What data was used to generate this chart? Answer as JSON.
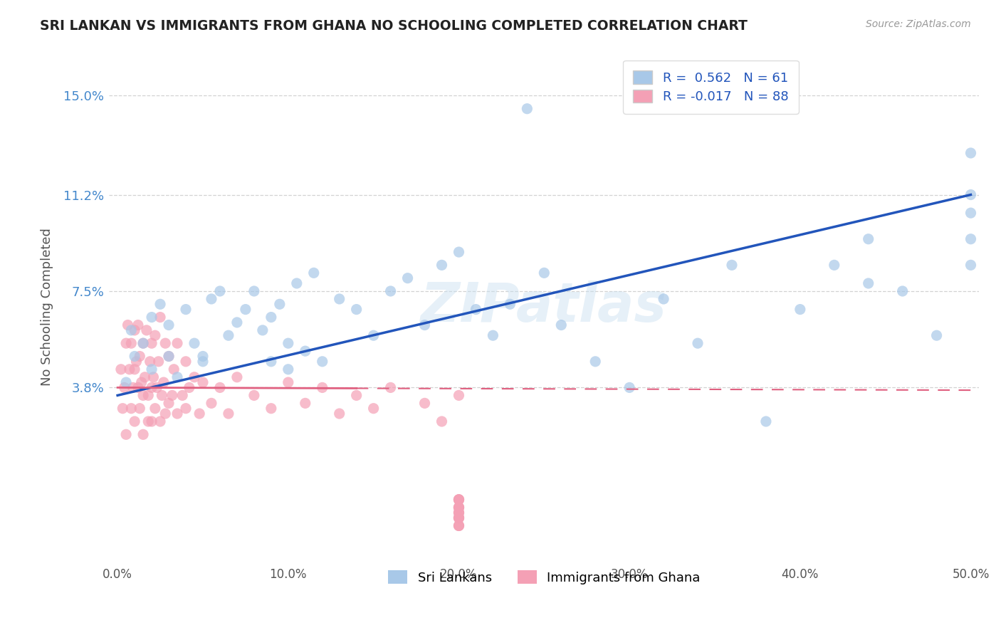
{
  "title": "SRI LANKAN VS IMMIGRANTS FROM GHANA NO SCHOOLING COMPLETED CORRELATION CHART",
  "source": "Source: ZipAtlas.com",
  "xlabel": "",
  "ylabel": "No Schooling Completed",
  "xlim": [
    -0.005,
    0.505
  ],
  "ylim": [
    -0.03,
    0.168
  ],
  "yticks": [
    0.038,
    0.075,
    0.112,
    0.15
  ],
  "ytick_labels": [
    "3.8%",
    "7.5%",
    "11.2%",
    "15.0%"
  ],
  "xticks": [
    0.0,
    0.1,
    0.2,
    0.3,
    0.4,
    0.5
  ],
  "xtick_labels": [
    "0.0%",
    "10.0%",
    "20.0%",
    "30.0%",
    "40.0%",
    "50.0%"
  ],
  "sri_lankan_R": 0.562,
  "sri_lankan_N": 61,
  "ghana_R": -0.017,
  "ghana_N": 88,
  "sri_lankan_color": "#a8c8e8",
  "ghana_color": "#f4a0b5",
  "sri_lankan_line_color": "#2255bb",
  "ghana_line_color": "#e06080",
  "background_color": "#ffffff",
  "watermark": "ZIPatlas",
  "sri_lankan_x": [
    0.005,
    0.008,
    0.01,
    0.015,
    0.02,
    0.02,
    0.025,
    0.03,
    0.03,
    0.035,
    0.04,
    0.045,
    0.05,
    0.05,
    0.055,
    0.06,
    0.065,
    0.07,
    0.075,
    0.08,
    0.085,
    0.09,
    0.09,
    0.095,
    0.1,
    0.1,
    0.105,
    0.11,
    0.115,
    0.12,
    0.13,
    0.14,
    0.15,
    0.16,
    0.17,
    0.18,
    0.19,
    0.2,
    0.21,
    0.22,
    0.23,
    0.24,
    0.25,
    0.26,
    0.28,
    0.3,
    0.32,
    0.34,
    0.36,
    0.38,
    0.4,
    0.42,
    0.44,
    0.44,
    0.46,
    0.48,
    0.5,
    0.5,
    0.5,
    0.5,
    0.5
  ],
  "sri_lankan_y": [
    0.04,
    0.06,
    0.05,
    0.055,
    0.045,
    0.065,
    0.07,
    0.05,
    0.062,
    0.042,
    0.068,
    0.055,
    0.05,
    0.048,
    0.072,
    0.075,
    0.058,
    0.063,
    0.068,
    0.075,
    0.06,
    0.048,
    0.065,
    0.07,
    0.055,
    0.045,
    0.078,
    0.052,
    0.082,
    0.048,
    0.072,
    0.068,
    0.058,
    0.075,
    0.08,
    0.062,
    0.085,
    0.09,
    0.068,
    0.058,
    0.07,
    0.145,
    0.082,
    0.062,
    0.048,
    0.038,
    0.072,
    0.055,
    0.085,
    0.025,
    0.068,
    0.085,
    0.078,
    0.095,
    0.075,
    0.058,
    0.112,
    0.095,
    0.085,
    0.105,
    0.128
  ],
  "ghana_x": [
    0.002,
    0.003,
    0.004,
    0.005,
    0.005,
    0.006,
    0.007,
    0.008,
    0.008,
    0.009,
    0.01,
    0.01,
    0.01,
    0.011,
    0.012,
    0.012,
    0.013,
    0.013,
    0.014,
    0.015,
    0.015,
    0.015,
    0.016,
    0.017,
    0.018,
    0.018,
    0.019,
    0.02,
    0.02,
    0.02,
    0.021,
    0.022,
    0.022,
    0.023,
    0.024,
    0.025,
    0.025,
    0.026,
    0.027,
    0.028,
    0.028,
    0.03,
    0.03,
    0.032,
    0.033,
    0.035,
    0.035,
    0.038,
    0.04,
    0.04,
    0.042,
    0.045,
    0.048,
    0.05,
    0.055,
    0.06,
    0.065,
    0.07,
    0.08,
    0.09,
    0.1,
    0.11,
    0.12,
    0.13,
    0.14,
    0.15,
    0.16,
    0.18,
    0.19,
    0.2,
    0.2,
    0.2,
    0.2,
    0.2,
    0.2,
    0.2,
    0.2,
    0.2,
    0.2,
    0.2,
    0.2,
    0.2,
    0.2,
    0.2,
    0.2,
    0.2,
    0.2,
    0.2
  ],
  "ghana_y": [
    0.045,
    0.03,
    0.038,
    0.055,
    0.02,
    0.062,
    0.045,
    0.03,
    0.055,
    0.038,
    0.045,
    0.06,
    0.025,
    0.048,
    0.038,
    0.062,
    0.03,
    0.05,
    0.04,
    0.035,
    0.055,
    0.02,
    0.042,
    0.06,
    0.035,
    0.025,
    0.048,
    0.038,
    0.055,
    0.025,
    0.042,
    0.03,
    0.058,
    0.038,
    0.048,
    0.025,
    0.065,
    0.035,
    0.04,
    0.028,
    0.055,
    0.032,
    0.05,
    0.035,
    0.045,
    0.028,
    0.055,
    0.035,
    0.03,
    0.048,
    0.038,
    0.042,
    0.028,
    0.04,
    0.032,
    0.038,
    0.028,
    0.042,
    0.035,
    0.03,
    0.04,
    0.032,
    0.038,
    0.028,
    0.035,
    0.03,
    0.038,
    0.032,
    0.025,
    0.035,
    -0.005,
    -0.008,
    -0.012,
    -0.015,
    -0.01,
    -0.005,
    -0.008,
    -0.012,
    -0.015,
    -0.01,
    -0.005,
    -0.008,
    -0.012,
    -0.015,
    -0.01,
    -0.005,
    -0.008,
    -0.012
  ]
}
